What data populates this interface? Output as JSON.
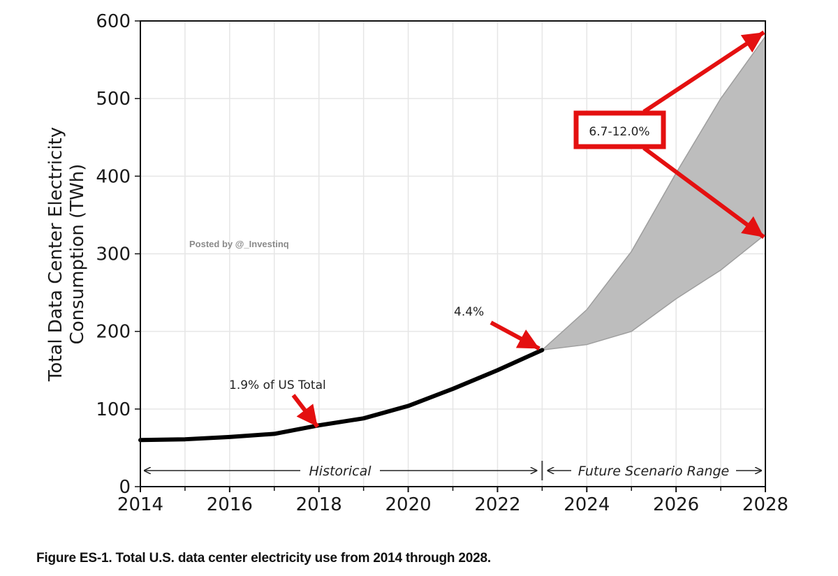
{
  "chart_data": {
    "type": "line",
    "title": "",
    "xlabel": "",
    "ylabel": "Total Data Center Electricity\nConsumption (TWh)",
    "ylabel_lines": [
      "Total Data Center Electricity",
      "Consumption (TWh)"
    ],
    "xlim": [
      2014,
      2028
    ],
    "ylim": [
      0,
      600
    ],
    "x_ticks": [
      2014,
      2016,
      2018,
      2020,
      2022,
      2024,
      2026,
      2028
    ],
    "x_tick_labels": [
      "2014",
      "2016",
      "2018",
      "2020",
      "2022",
      "2024",
      "2026",
      "2028"
    ],
    "x_minor_ticks": [
      2015,
      2017,
      2019,
      2021,
      2023,
      2025,
      2027
    ],
    "y_ticks": [
      0,
      100,
      200,
      300,
      400,
      500,
      600
    ],
    "y_tick_labels": [
      "0",
      "100",
      "200",
      "300",
      "400",
      "500",
      "600"
    ],
    "grid": true,
    "series": [
      {
        "name": "Historical",
        "kind": "line",
        "color": "#000000",
        "x": [
          2014,
          2015,
          2016,
          2017,
          2018,
          2019,
          2020,
          2021,
          2022,
          2023
        ],
        "values": [
          60,
          61,
          64,
          68,
          79,
          88,
          104,
          126,
          150,
          176
        ]
      },
      {
        "name": "Future Scenario Range",
        "kind": "band",
        "color": "#bdbdbd",
        "x": [
          2023,
          2024,
          2025,
          2026,
          2027,
          2028
        ],
        "lower": [
          176,
          183,
          200,
          242,
          279,
          325
        ],
        "upper": [
          176,
          228,
          303,
          404,
          500,
          580
        ]
      }
    ],
    "annotations": [
      {
        "text": "1.9% of US Total",
        "points_to": [
          2018,
          79
        ]
      },
      {
        "text": "4.4%",
        "points_to": [
          2023,
          176
        ]
      },
      {
        "text": "6.7-12.0%",
        "points_to": [
          [
            2028,
            580
          ],
          [
            2028,
            325
          ]
        ],
        "boxed": true
      }
    ],
    "range_labels": {
      "historical": "Historical",
      "future": "Future Scenario Range",
      "split_year": 2023
    },
    "annotation_color": "#e41010"
  },
  "watermark": "Posted by @_Investinq",
  "caption": "Figure ES-1. Total U.S. data center electricity use from 2014 through 2028."
}
